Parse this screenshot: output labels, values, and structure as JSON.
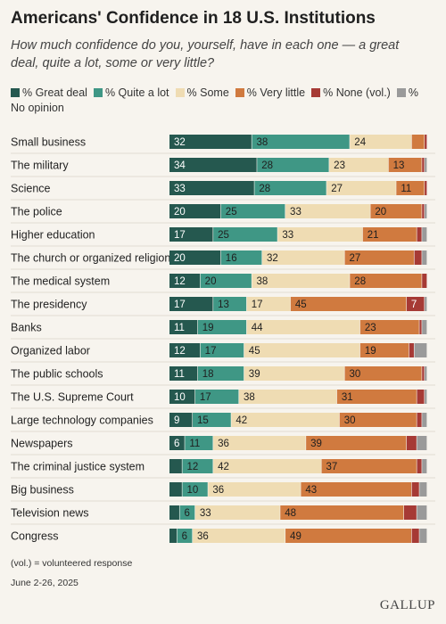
{
  "title": "Americans' Confidence in 18 U.S. Institutions",
  "subtitle": "How much confidence do you, yourself, have in each one — a great deal, quite a lot, some or very little?",
  "note": "(vol.) = volunteered response",
  "date": "June 2-26, 2025",
  "logo": "GALLUP",
  "chart_data": {
    "type": "bar",
    "orientation": "horizontal",
    "stacked": true,
    "xlim": [
      0,
      100
    ],
    "categories": [
      "Small business",
      "The military",
      "Science",
      "The police",
      "Higher education",
      "The church or organized religion",
      "The medical system",
      "The presidency",
      "Banks",
      "Organized labor",
      "The public schools",
      "The U.S. Supreme Court",
      "Large technology companies",
      "Newspapers",
      "The criminal justice system",
      "Big business",
      "Television news",
      "Congress"
    ],
    "series": [
      {
        "name": "% Great deal",
        "color": "#25584f",
        "text_color": "#ffffff",
        "values": [
          32,
          34,
          33,
          20,
          17,
          20,
          12,
          17,
          11,
          12,
          11,
          10,
          9,
          6,
          5,
          5,
          4,
          3
        ]
      },
      {
        "name": "% Quite a lot",
        "color": "#3f9785",
        "text_color": "#1f1f1f",
        "values": [
          38,
          28,
          28,
          25,
          25,
          16,
          20,
          13,
          19,
          17,
          18,
          17,
          15,
          11,
          12,
          10,
          6,
          6
        ]
      },
      {
        "name": "% Some",
        "color": "#efdcb3",
        "text_color": "#1f1f1f",
        "values": [
          24,
          23,
          27,
          33,
          33,
          32,
          38,
          17,
          44,
          45,
          39,
          38,
          42,
          36,
          42,
          36,
          33,
          36
        ]
      },
      {
        "name": "% Very little",
        "color": "#d07a3f",
        "text_color": "#1f1f1f",
        "values": [
          5,
          13,
          11,
          20,
          21,
          27,
          28,
          45,
          23,
          19,
          30,
          31,
          30,
          39,
          37,
          43,
          48,
          49
        ]
      },
      {
        "name": "% None (vol.)",
        "color": "#a63a35",
        "text_color": "#ffffff",
        "values": [
          1,
          1,
          1,
          1,
          2,
          3,
          2,
          7,
          1,
          2,
          1,
          3,
          2,
          4,
          2,
          3,
          5,
          3
        ]
      },
      {
        "name": "% No opinion",
        "color": "#9a9a9a",
        "text_color": "#1f1f1f",
        "values": [
          0,
          1,
          0,
          1,
          2,
          2,
          0,
          1,
          2,
          5,
          1,
          1,
          2,
          4,
          2,
          3,
          4,
          3
        ]
      }
    ],
    "label_min_value": 6
  }
}
